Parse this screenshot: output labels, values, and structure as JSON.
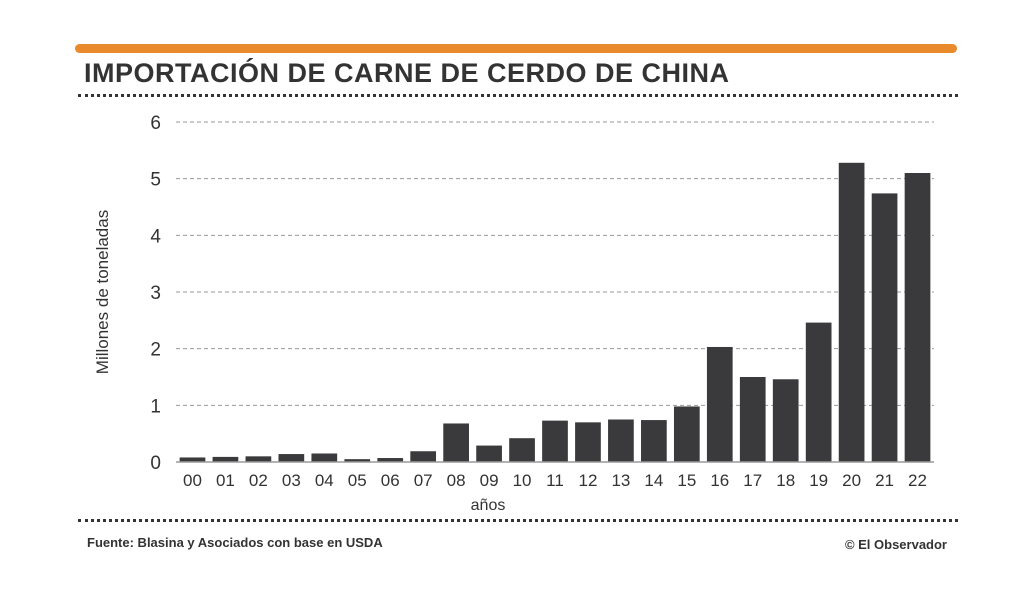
{
  "colors": {
    "accent": "#e98a2c",
    "bars": "#3a3a3c",
    "text": "#333333",
    "grid": "#9a9a9a"
  },
  "header": {
    "title": "IMPORTACIÓN DE CARNE DE CERDO DE CHINA"
  },
  "footer": {
    "source": "Fuente: Blasina y Asociados con base en USDA",
    "credit": "© El Observador"
  },
  "chart_data": {
    "type": "bar",
    "title": "IMPORTACIÓN DE CARNE DE CERDO DE CHINA",
    "xlabel": "años",
    "ylabel": "Millones de toneladas",
    "ylim": [
      0,
      6
    ],
    "yticks": [
      0,
      1,
      2,
      3,
      4,
      5,
      6
    ],
    "grid": true,
    "categories": [
      "00",
      "01",
      "02",
      "03",
      "04",
      "05",
      "06",
      "07",
      "08",
      "09",
      "10",
      "11",
      "12",
      "13",
      "14",
      "15",
      "16",
      "17",
      "18",
      "19",
      "20",
      "21",
      "22"
    ],
    "values": [
      0.08,
      0.09,
      0.1,
      0.14,
      0.15,
      0.05,
      0.07,
      0.19,
      0.68,
      0.29,
      0.42,
      0.73,
      0.7,
      0.75,
      0.74,
      0.98,
      2.03,
      1.5,
      1.46,
      2.46,
      5.28,
      4.74,
      5.1
    ]
  }
}
